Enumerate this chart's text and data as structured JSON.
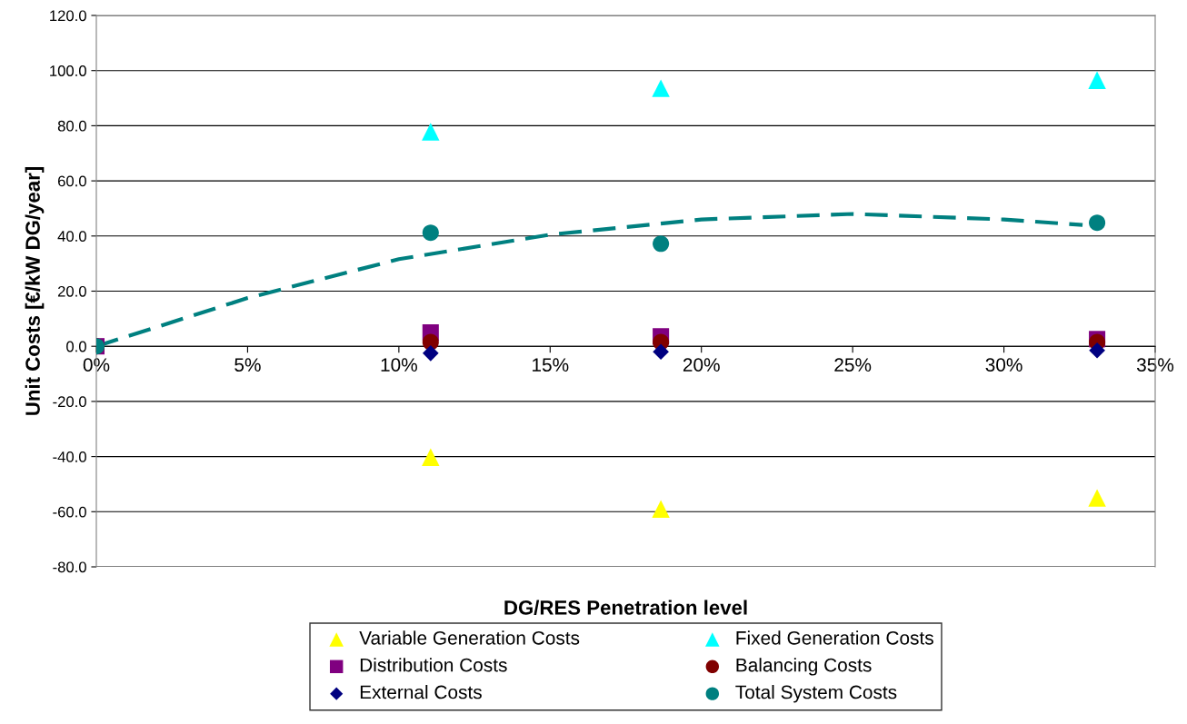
{
  "chart_data": {
    "type": "scatter",
    "xlabel": "DG/RES Penetration level",
    "ylabel": "Unit Costs [€/kW DG/year]",
    "x": [
      0,
      11.05,
      18.66,
      33.08
    ],
    "series": [
      {
        "name": "Variable Generation Costs",
        "color": "#ffff00",
        "marker": "triangle",
        "values": [
          null,
          -40.2,
          -59,
          -55
        ]
      },
      {
        "name": "Fixed Generation Costs",
        "color": "#00ffff",
        "marker": "triangle",
        "values": [
          null,
          77.8,
          93.6,
          96.5
        ]
      },
      {
        "name": "Distribution Costs",
        "color": "#800080",
        "marker": "square",
        "values": [
          0,
          5,
          3.6,
          2.6
        ]
      },
      {
        "name": "Balancing Costs",
        "color": "#800000",
        "marker": "circle",
        "values": [
          0,
          1.5,
          1.5,
          1.5
        ]
      },
      {
        "name": "External Costs",
        "color": "#000080",
        "marker": "diamond",
        "values": [
          null,
          -2.5,
          -2,
          -1.5
        ]
      },
      {
        "name": "Total System Costs",
        "color": "#008080",
        "marker": "circle",
        "values": [
          0,
          41.2,
          37.2,
          44.8
        ]
      },
      {
        "type": "line",
        "color": "#008080",
        "marker": "none",
        "line_style": "dashed",
        "x": [
          0,
          5,
          10,
          15,
          20,
          25,
          30,
          32.6
        ],
        "values": [
          0,
          17.5,
          31.6,
          40.5,
          46,
          48,
          46,
          44
        ]
      }
    ],
    "xlim": [
      0,
      35
    ],
    "xticks": [
      {
        "value": 0,
        "label": "0%"
      },
      {
        "value": 5,
        "label": "5%"
      },
      {
        "value": 10,
        "label": "10%"
      },
      {
        "value": 15,
        "label": "15%"
      },
      {
        "value": 20,
        "label": "20%"
      },
      {
        "value": 25,
        "label": "25%"
      },
      {
        "value": 30,
        "label": "30%"
      },
      {
        "value": 35,
        "label": "35%"
      }
    ],
    "ylim": [
      -80,
      120
    ],
    "yticks": [
      {
        "value": -80,
        "label": "-80.0"
      },
      {
        "value": -60,
        "label": "-60.0"
      },
      {
        "value": -40,
        "label": "-40.0"
      },
      {
        "value": -20,
        "label": "-20.0"
      },
      {
        "value": 0,
        "label": "0.0"
      },
      {
        "value": 20,
        "label": "20.0"
      },
      {
        "value": 40,
        "label": "40.0"
      },
      {
        "value": 60,
        "label": "60.0"
      },
      {
        "value": 80,
        "label": "80.0"
      },
      {
        "value": 100,
        "label": "100.0"
      },
      {
        "value": 120,
        "label": "120.0"
      }
    ],
    "grid": "y",
    "legend": "bottom"
  }
}
